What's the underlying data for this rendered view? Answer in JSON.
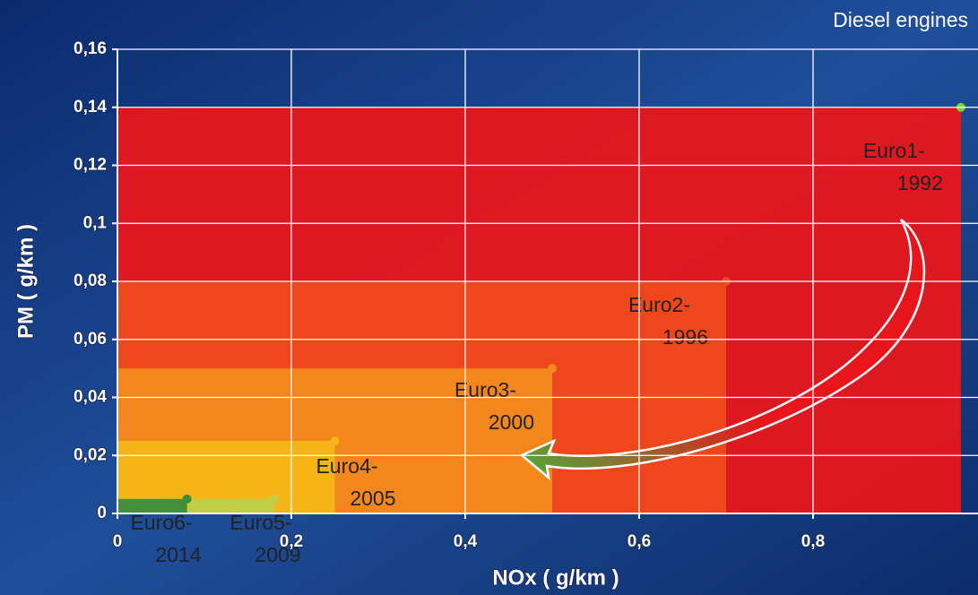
{
  "chart_data": {
    "type": "nested-rect",
    "annotation": "Diesel engines",
    "x_label": "NOx ( g/km )",
    "y_label": "PM ( g/km )",
    "xlim": [
      0,
      0.99
    ],
    "ylim": [
      0,
      0.16
    ],
    "xticks": [
      0,
      {
        "value": 0.2,
        "label": "0,2"
      },
      {
        "value": 0.4,
        "label": "0,4"
      },
      {
        "value": 0.6,
        "label": "0,6"
      },
      {
        "value": 0.8,
        "label": "0,8"
      }
    ],
    "yticks": [
      0,
      {
        "value": 0.02,
        "label": "0,02"
      },
      {
        "value": 0.04,
        "label": "0,04"
      },
      {
        "value": 0.06,
        "label": "0,06"
      },
      {
        "value": 0.08,
        "label": "0,08"
      },
      {
        "value": 0.1,
        "label": "0,1"
      },
      {
        "value": 0.12,
        "label": "0,12"
      },
      {
        "value": 0.14,
        "label": "0,14"
      },
      {
        "value": 0.16,
        "label": "0,16"
      }
    ],
    "grid": true,
    "series": [
      {
        "name": "Euro1-",
        "year": "1992",
        "color": "#e8161b",
        "x": 0.97,
        "y": 0.14
      },
      {
        "name": "Euro2-",
        "year": "1996",
        "color": "#ee4a1e",
        "x": 0.7,
        "y": 0.08
      },
      {
        "name": "Euro3-",
        "year": "2000",
        "color": "#f28a1c",
        "x": 0.5,
        "y": 0.05
      },
      {
        "name": "Euro4-",
        "year": "2005",
        "color": "#f6b716",
        "x": 0.25,
        "y": 0.025
      },
      {
        "name": "Euro5-",
        "year": "2009",
        "color": "#bccf4a",
        "x": 0.18,
        "y": 0.005
      },
      {
        "name": "Euro6-",
        "year": "2014",
        "color": "#3c8c3c",
        "x": 0.08,
        "y": 0.005
      }
    ]
  }
}
